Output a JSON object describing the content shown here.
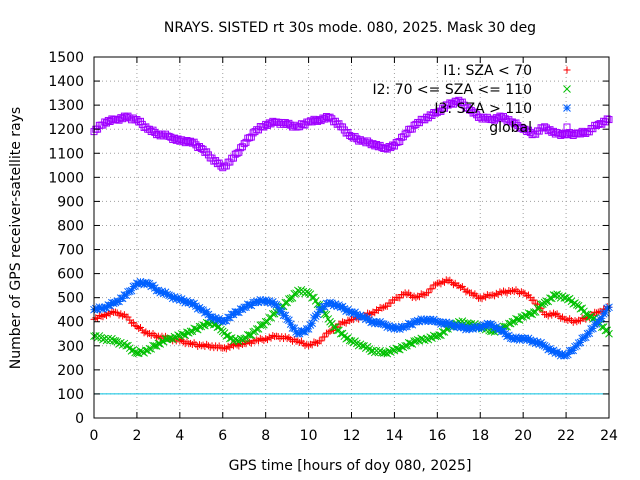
{
  "chart_data": {
    "type": "scatter",
    "title": "NRAYS. SISTED rt 30s mode. 080, 2025. Mask 30 deg",
    "xlabel": "GPS time [hours of doy 080, 2025]",
    "ylabel": "Number of GPS receiver-satellite rays",
    "xlim": [
      0,
      24
    ],
    "ylim": [
      0,
      1500
    ],
    "xticks": [
      0,
      2,
      4,
      6,
      8,
      10,
      12,
      14,
      16,
      18,
      20,
      22,
      24
    ],
    "yticks": [
      0,
      100,
      200,
      300,
      400,
      500,
      600,
      700,
      800,
      900,
      1000,
      1100,
      1200,
      1300,
      1400,
      1500
    ],
    "grid": true,
    "legend_position": "top-right",
    "threshold_line": {
      "y": 100,
      "color": "#00c0e0"
    },
    "series": [
      {
        "name": "I1: SZA < 70",
        "marker": "plus",
        "color": "#ff0000",
        "x": [
          0,
          0.5,
          1,
          1.5,
          2,
          2.5,
          3,
          3.5,
          4,
          4.5,
          5,
          5.5,
          6,
          6.5,
          7,
          7.5,
          8,
          8.5,
          9,
          9.5,
          10,
          10.5,
          11,
          11.5,
          12,
          12.5,
          13,
          13.5,
          14,
          14.5,
          15,
          15.5,
          16,
          16.5,
          17,
          17.5,
          18,
          18.5,
          19,
          19.5,
          20,
          20.5,
          21,
          21.5,
          22,
          22.5,
          23,
          23.5,
          24
        ],
        "y": [
          410,
          430,
          440,
          420,
          380,
          350,
          340,
          330,
          320,
          310,
          300,
          300,
          290,
          300,
          310,
          320,
          330,
          340,
          330,
          320,
          300,
          320,
          360,
          390,
          410,
          420,
          440,
          460,
          490,
          520,
          500,
          520,
          560,
          570,
          550,
          520,
          500,
          510,
          520,
          530,
          520,
          490,
          430,
          430,
          410,
          400,
          420,
          440,
          460
        ]
      },
      {
        "name": "I2: 70 <= SZA <= 110",
        "marker": "cross",
        "color": "#00c000",
        "x": [
          0,
          0.5,
          1,
          1.5,
          2,
          2.5,
          3,
          3.5,
          4,
          4.5,
          5,
          5.5,
          6,
          6.5,
          7,
          7.5,
          8,
          8.5,
          9,
          9.5,
          10,
          10.5,
          11,
          11.5,
          12,
          12.5,
          13,
          13.5,
          14,
          14.5,
          15,
          15.5,
          16,
          16.5,
          17,
          17.5,
          18,
          18.5,
          19,
          19.5,
          20,
          20.5,
          21,
          21.5,
          22,
          22.5,
          23,
          23.5,
          24
        ],
        "y": [
          340,
          330,
          320,
          300,
          270,
          280,
          310,
          330,
          340,
          360,
          380,
          400,
          360,
          320,
          330,
          360,
          400,
          440,
          480,
          530,
          520,
          470,
          400,
          350,
          320,
          300,
          280,
          270,
          280,
          300,
          320,
          330,
          340,
          370,
          400,
          390,
          380,
          360,
          370,
          400,
          420,
          440,
          480,
          510,
          500,
          470,
          430,
          400,
          350
        ]
      },
      {
        "name": "I3: SZA > 110",
        "marker": "star",
        "color": "#0060ff",
        "x": [
          0,
          0.5,
          1,
          1.5,
          2,
          2.5,
          3,
          3.5,
          4,
          4.5,
          5,
          5.5,
          6,
          6.5,
          7,
          7.5,
          8,
          8.5,
          9,
          9.5,
          10,
          10.5,
          11,
          11.5,
          12,
          12.5,
          13,
          13.5,
          14,
          14.5,
          15,
          15.5,
          16,
          16.5,
          17,
          17.5,
          18,
          18.5,
          19,
          19.5,
          20,
          20.5,
          21,
          21.5,
          22,
          22.5,
          23,
          23.5,
          24
        ],
        "y": [
          450,
          460,
          480,
          510,
          560,
          560,
          530,
          510,
          490,
          480,
          450,
          420,
          400,
          430,
          460,
          480,
          490,
          470,
          410,
          350,
          370,
          450,
          480,
          460,
          440,
          420,
          400,
          390,
          370,
          380,
          400,
          410,
          400,
          390,
          380,
          370,
          380,
          390,
          360,
          330,
          330,
          320,
          300,
          270,
          260,
          300,
          350,
          400,
          460
        ]
      },
      {
        "name": "global",
        "marker": "square",
        "color": "#a000ff",
        "x": [
          0,
          0.5,
          1,
          1.5,
          2,
          2.5,
          3,
          3.5,
          4,
          4.5,
          5,
          5.5,
          6,
          6.5,
          7,
          7.5,
          8,
          8.5,
          9,
          9.5,
          10,
          10.5,
          11,
          11.5,
          12,
          12.5,
          13,
          13.5,
          14,
          14.5,
          15,
          15.5,
          16,
          16.5,
          17,
          17.5,
          18,
          18.5,
          19,
          19.5,
          20,
          20.5,
          21,
          21.5,
          22,
          22.5,
          23,
          23.5,
          24
        ],
        "y": [
          1190,
          1230,
          1240,
          1250,
          1240,
          1200,
          1180,
          1170,
          1150,
          1150,
          1120,
          1080,
          1040,
          1080,
          1140,
          1190,
          1220,
          1230,
          1220,
          1210,
          1230,
          1240,
          1250,
          1210,
          1170,
          1150,
          1140,
          1120,
          1130,
          1180,
          1220,
          1250,
          1270,
          1300,
          1320,
          1280,
          1250,
          1240,
          1250,
          1230,
          1200,
          1180,
          1210,
          1180,
          1180,
          1180,
          1190,
          1220,
          1240
        ]
      }
    ]
  }
}
